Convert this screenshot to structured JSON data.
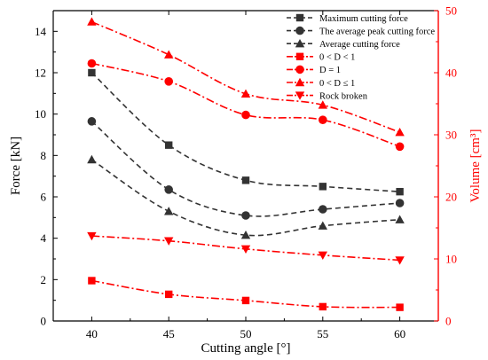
{
  "chart_data": {
    "type": "line",
    "x": [
      40,
      45,
      50,
      55,
      60
    ],
    "xlabel": "Cutting angle [°]",
    "xlim": [
      37.5,
      62.5
    ],
    "xticks": [
      40,
      45,
      50,
      55,
      60
    ],
    "ylabel_left": "Force [kN]",
    "ylim_left": [
      0,
      15
    ],
    "yticks_left": [
      0,
      2,
      4,
      6,
      8,
      10,
      12,
      14
    ],
    "ylabel_right": "Volume [cm³]",
    "ylim_right": [
      0,
      50
    ],
    "yticks_right": [
      0,
      10,
      20,
      30,
      40,
      50
    ],
    "grid": false,
    "legend_position": "top-right",
    "series": [
      {
        "name": "Maximum cutting force",
        "axis": "left",
        "color": "#333333",
        "marker": "square",
        "line": "dashed",
        "values": [
          12.0,
          8.5,
          6.8,
          6.5,
          6.25
        ]
      },
      {
        "name": "The average peak cutting force",
        "axis": "left",
        "color": "#333333",
        "marker": "circle",
        "line": "dashed",
        "values": [
          9.65,
          6.35,
          5.1,
          5.4,
          5.7
        ]
      },
      {
        "name": "Average cutting force",
        "axis": "left",
        "color": "#333333",
        "marker": "triangle-up",
        "line": "dashed",
        "values": [
          7.8,
          5.3,
          4.15,
          4.6,
          4.9
        ]
      },
      {
        "name": "0 < D < 1",
        "axis": "right",
        "color": "#ff0000",
        "marker": "square",
        "line": "dashdot",
        "values": [
          6.5,
          4.3,
          3.3,
          2.3,
          2.2
        ]
      },
      {
        "name": "D = 1",
        "axis": "right",
        "color": "#ff0000",
        "marker": "circle",
        "line": "dashdot",
        "values": [
          41.5,
          38.6,
          33.2,
          32.4,
          28.1
        ]
      },
      {
        "name": "0 < D ≤ 1",
        "axis": "right",
        "color": "#ff0000",
        "marker": "triangle-up",
        "line": "dashdot",
        "values": [
          48.2,
          42.9,
          36.6,
          34.8,
          30.4
        ]
      },
      {
        "name": "Rock broken",
        "axis": "right",
        "color": "#ff0000",
        "marker": "triangle-down",
        "line": "dashdot",
        "values": [
          13.7,
          12.9,
          11.6,
          10.6,
          9.8
        ]
      }
    ]
  }
}
